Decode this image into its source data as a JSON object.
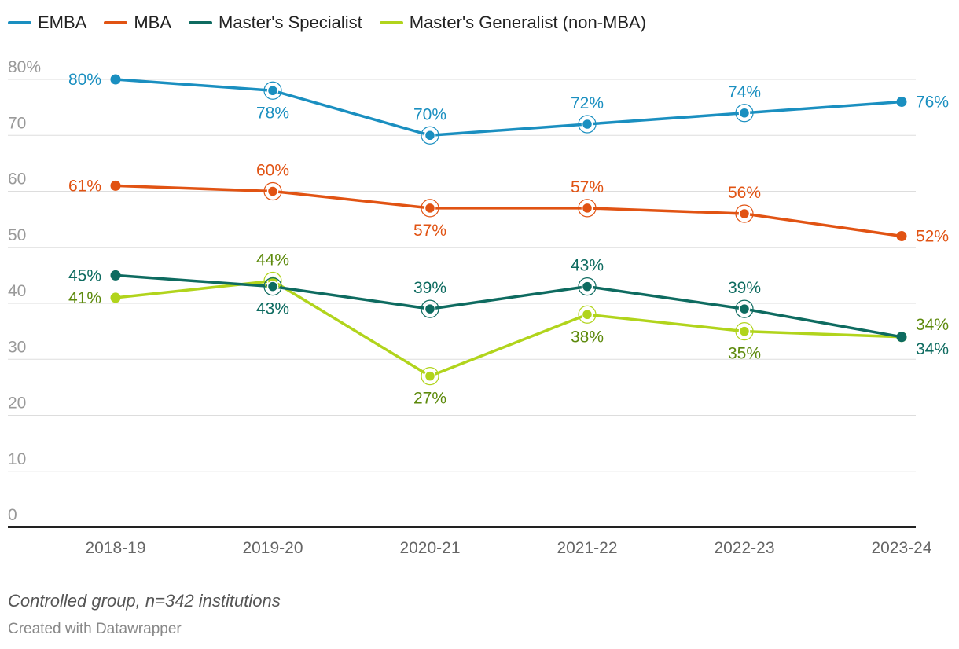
{
  "chart_data": {
    "type": "line",
    "categories": [
      "2018-19",
      "2019-20",
      "2020-21",
      "2021-22",
      "2022-23",
      "2023-24"
    ],
    "y_ticks": [
      "0",
      "10",
      "20",
      "30",
      "40",
      "50",
      "60",
      "70",
      "80%"
    ],
    "ylim": [
      0,
      80
    ],
    "grid": true,
    "legend_position": "top-left",
    "series": [
      {
        "name": "EMBA",
        "color": "#1a8fc0",
        "label_color": "#1a8fc0",
        "values": [
          80,
          78,
          70,
          72,
          74,
          76
        ],
        "labels": [
          "80%",
          "78%",
          "70%",
          "72%",
          "74%",
          "76%"
        ]
      },
      {
        "name": "MBA",
        "color": "#e15313",
        "label_color": "#e15313",
        "values": [
          61,
          60,
          57,
          57,
          56,
          52
        ],
        "labels": [
          "61%",
          "60%",
          "57%",
          "57%",
          "56%",
          "52%"
        ]
      },
      {
        "name": "Master's Specialist",
        "color": "#0e6b60",
        "label_color": "#0e6b60",
        "values": [
          45,
          43,
          39,
          43,
          39,
          34
        ],
        "labels": [
          "45%",
          "43%",
          "39%",
          "43%",
          "39%",
          "34%"
        ]
      },
      {
        "name": "Master's Generalist (non-MBA)",
        "color": "#b1d41c",
        "label_color": "#5d8a0c",
        "values": [
          41,
          44,
          27,
          38,
          35,
          34
        ],
        "labels": [
          "41%",
          "44%",
          "27%",
          "38%",
          "35%",
          "34%"
        ]
      }
    ]
  },
  "footer": {
    "note": "Controlled group, n=342 institutions",
    "credit": "Created with Datawrapper"
  }
}
